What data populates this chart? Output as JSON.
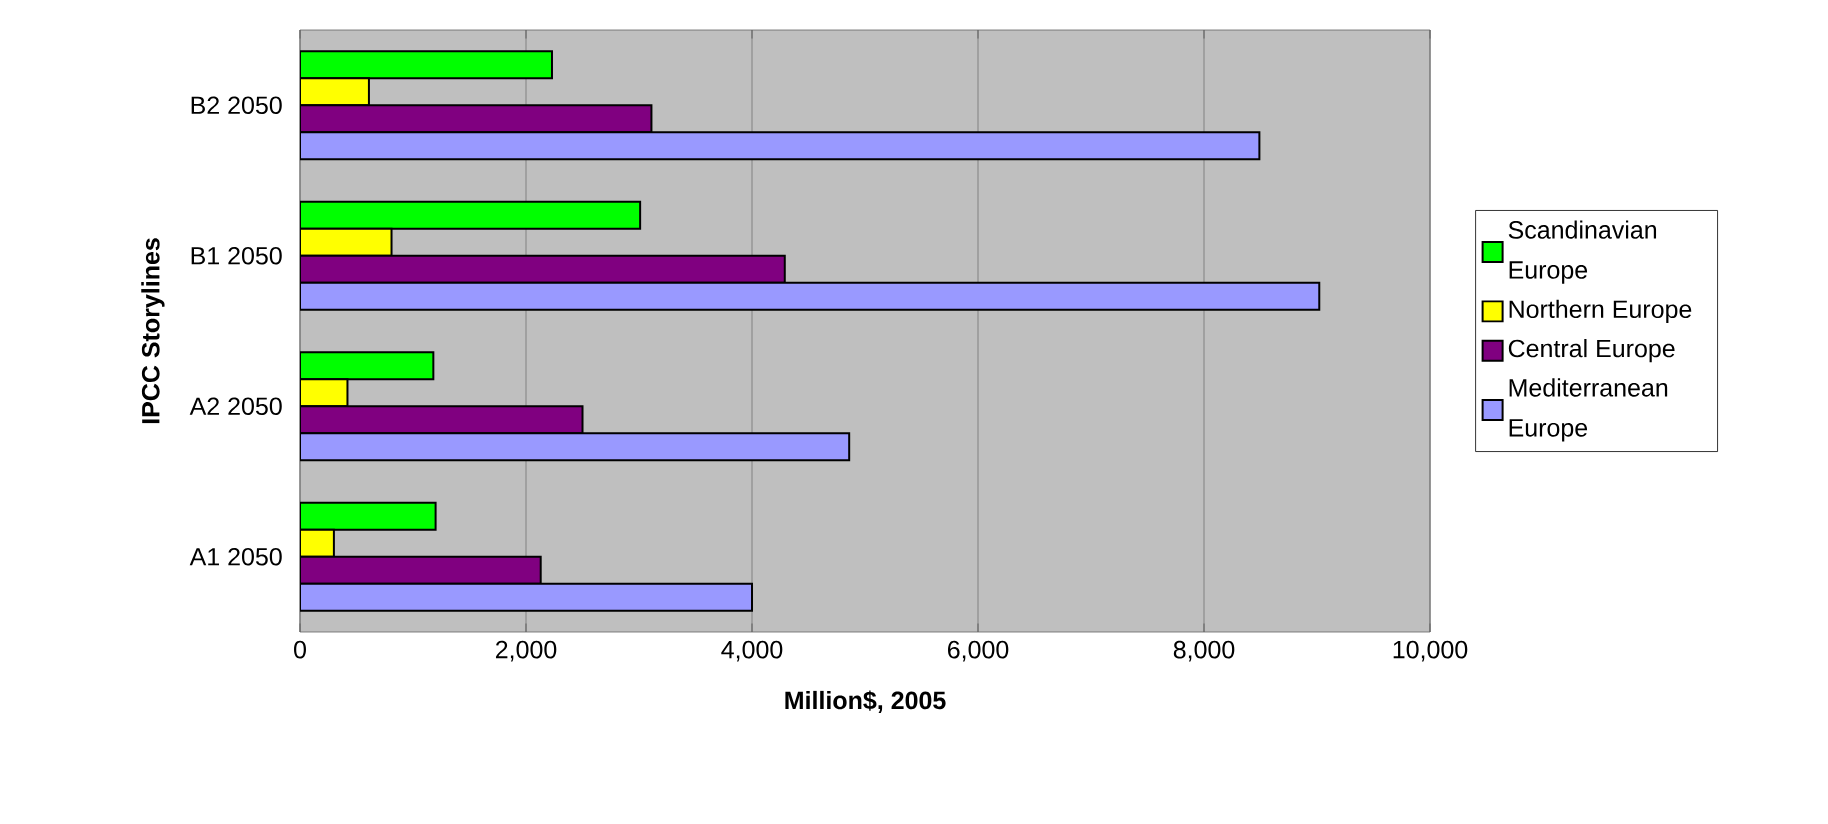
{
  "chart_data": {
    "type": "bar",
    "orientation": "horizontal",
    "xlabel": "Million$, 2005",
    "ylabel": "IPCC Storylines",
    "categories": [
      "B2 2050",
      "B1 2050",
      "A2 2050",
      "A1 2050"
    ],
    "series": [
      {
        "name": "Scandinavian Europe",
        "color": "#00ff00",
        "values": [
          2230,
          3010,
          1180,
          1200
        ]
      },
      {
        "name": "Northern Europe",
        "color": "#ffff00",
        "values": [
          610,
          810,
          420,
          300
        ]
      },
      {
        "name": "Central Europe",
        "color": "#800080",
        "values": [
          3110,
          4290,
          2500,
          2130
        ]
      },
      {
        "name": "Mediterranean Europe",
        "color": "#9999ff",
        "values": [
          8490,
          9020,
          4860,
          4000
        ]
      }
    ],
    "xlim": [
      0,
      10000
    ],
    "xticks": [
      0,
      {
        "value": 2000,
        "label": "2,000"
      },
      {
        "value": 4000,
        "label": "4,000"
      },
      {
        "value": 6000,
        "label": "6,000"
      },
      {
        "value": 8000,
        "label": "8,000"
      },
      {
        "value": 10000,
        "label": "10,000"
      }
    ],
    "grid": "x",
    "legend": "right"
  }
}
